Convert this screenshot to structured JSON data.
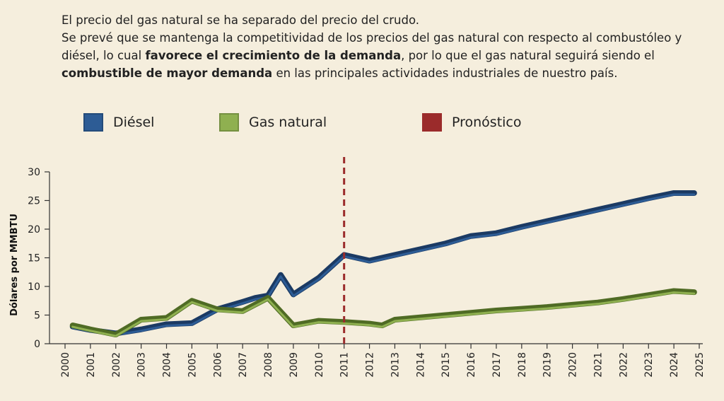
{
  "intro": {
    "line1": "El precio del gas natural se ha separado del precio del crudo.",
    "line2a": "Se prevé que se mantenga la competitividad de los precios del gas natural con respecto al combustóleo y diésel, lo cual ",
    "line2b": "favorece el crecimiento de la demanda",
    "line2c": ", por lo que el gas natural seguirá siendo el ",
    "line2d": "combustible de mayor demanda",
    "line2e": " en las principales actividades industriales de nuestro país."
  },
  "legend": [
    {
      "label": "Diésel",
      "color": "#2d5c95"
    },
    {
      "label": "Gas natural",
      "color": "#8fb050"
    },
    {
      "label": "Pronóstico",
      "color": "#9b2b2b"
    }
  ],
  "chart_data": {
    "type": "line",
    "ylabel": "Dólares por MMBTU",
    "xlabel": "",
    "ylim": [
      0,
      30
    ],
    "yticks": [
      0,
      5,
      10,
      15,
      20,
      25,
      30
    ],
    "xlim": [
      2000,
      2025
    ],
    "xticks": [
      2000,
      2001,
      2002,
      2003,
      2004,
      2005,
      2006,
      2007,
      2008,
      2009,
      2010,
      2011,
      2012,
      2013,
      2014,
      2015,
      2016,
      2017,
      2018,
      2019,
      2020,
      2021,
      2022,
      2023,
      2024,
      2025
    ],
    "forecast_start": 2011,
    "series": [
      {
        "name": "Diésel",
        "color": "#2d5c95",
        "dark": "#1b3a63",
        "x": [
          2000.3,
          2001,
          2002,
          2003,
          2004,
          2005,
          2006,
          2007,
          2007.5,
          2008,
          2008.5,
          2009,
          2010,
          2011,
          2012,
          2013,
          2014,
          2015,
          2016,
          2017,
          2018,
          2019,
          2020,
          2021,
          2022,
          2023,
          2024,
          2024.8
        ],
        "values": [
          3.0,
          2.4,
          1.8,
          2.5,
          3.4,
          3.6,
          6.0,
          7.3,
          8.0,
          8.4,
          12.0,
          8.6,
          11.5,
          15.5,
          14.5,
          15.5,
          16.5,
          17.5,
          18.8,
          19.3,
          20.4,
          21.4,
          22.4,
          23.4,
          24.4,
          25.4,
          26.3,
          26.3
        ]
      },
      {
        "name": "Gas natural",
        "color": "#8fb050",
        "dark": "#4f6b24",
        "x": [
          2000.3,
          2001,
          2002,
          2003,
          2004,
          2005,
          2006,
          2007,
          2008,
          2009,
          2010,
          2011,
          2012,
          2012.5,
          2013,
          2014,
          2015,
          2016,
          2017,
          2018,
          2019,
          2020,
          2021,
          2022,
          2023,
          2024,
          2024.8
        ],
        "values": [
          3.2,
          2.5,
          1.6,
          4.2,
          4.5,
          7.5,
          6.0,
          5.7,
          8.0,
          3.2,
          4.0,
          3.8,
          3.5,
          3.2,
          4.2,
          4.6,
          5.0,
          5.4,
          5.8,
          6.1,
          6.4,
          6.8,
          7.2,
          7.8,
          8.5,
          9.2,
          9.0
        ]
      }
    ]
  }
}
